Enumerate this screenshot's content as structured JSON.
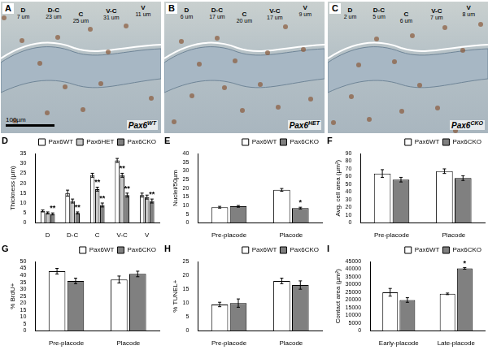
{
  "image_panels": [
    {
      "panel": "A",
      "genotype": {
        "base": "Pax6",
        "sup": "WT"
      },
      "scale_bar": "100µm",
      "regions": [
        {
          "label": "D",
          "measure": "7 um"
        },
        {
          "label": "D-C",
          "measure": "23 um"
        },
        {
          "label": "C",
          "measure": "25 um"
        },
        {
          "label": "V-C",
          "measure": "31 um"
        },
        {
          "label": "V",
          "measure": "11 um"
        }
      ]
    },
    {
      "panel": "B",
      "genotype": {
        "base": "Pax6",
        "sup": "HET"
      },
      "regions": [
        {
          "label": "D",
          "measure": "6 um"
        },
        {
          "label": "D-C",
          "measure": "17 um"
        },
        {
          "label": "C",
          "measure": "20 um"
        },
        {
          "label": "V-C",
          "measure": "17 um"
        },
        {
          "label": "V",
          "measure": "9 um"
        }
      ]
    },
    {
      "panel": "C",
      "genotype": {
        "base": "Pax6",
        "sup": "CKO"
      },
      "regions": [
        {
          "label": "D",
          "measure": "2 um"
        },
        {
          "label": "D-C",
          "measure": "5 um"
        },
        {
          "label": "C",
          "measure": "6 um"
        },
        {
          "label": "V-C",
          "measure": "7 um"
        },
        {
          "label": "V",
          "measure": "8 um"
        }
      ]
    }
  ],
  "chart_data": [
    {
      "panel": "D",
      "type": "bar",
      "ylabel": "Thickness (µm)",
      "categories": [
        "D",
        "D-C",
        "C",
        "V-C",
        "V"
      ],
      "ylim": [
        0,
        35
      ],
      "yticks": [
        0,
        5,
        10,
        15,
        20,
        25,
        30,
        35
      ],
      "grid": false,
      "legend": "upper right",
      "series": [
        {
          "name": "Pax6WT",
          "color": "#ffffff",
          "values": [
            6,
            15,
            24,
            31.5,
            14
          ],
          "errors": [
            0.5,
            1.5,
            1,
            1,
            1
          ],
          "significance": [
            null,
            null,
            null,
            null,
            null
          ]
        },
        {
          "name": "Pax6HET",
          "color": "#c8c8c8",
          "values": [
            5,
            11,
            17,
            24,
            13
          ],
          "errors": [
            0.5,
            1,
            1,
            1,
            1
          ],
          "significance": [
            null,
            null,
            "**",
            "**",
            null
          ]
        },
        {
          "name": "Pax6CKO",
          "color": "#808080",
          "values": [
            4.5,
            5,
            9,
            14,
            11
          ],
          "errors": [
            0.5,
            0.5,
            1,
            1,
            1
          ],
          "significance": [
            "**",
            "**",
            "**",
            "**",
            "**"
          ]
        }
      ]
    },
    {
      "panel": "E",
      "type": "bar",
      "ylabel": "Nuclei/50µm",
      "categories": [
        "Pre-placode",
        "Placode"
      ],
      "ylim": [
        0,
        40
      ],
      "yticks": [
        0,
        5,
        10,
        15,
        20,
        25,
        30,
        35,
        40
      ],
      "grid": false,
      "legend": "upper right",
      "series": [
        {
          "name": "Pax6WT",
          "color": "#ffffff",
          "values": [
            9,
            19
          ],
          "errors": [
            0.5,
            0.8
          ],
          "significance": [
            null,
            null
          ]
        },
        {
          "name": "Pax6CKO",
          "color": "#808080",
          "values": [
            9.5,
            8.5
          ],
          "errors": [
            0.5,
            0.5
          ],
          "significance": [
            null,
            "*"
          ]
        }
      ]
    },
    {
      "panel": "F",
      "type": "bar",
      "ylabel": "Avg. cell area (µm²)",
      "categories": [
        "Pre-placode",
        "Placode"
      ],
      "ylim": [
        0,
        90
      ],
      "yticks": [
        0,
        10,
        20,
        30,
        40,
        50,
        60,
        70,
        80,
        90
      ],
      "grid": false,
      "legend": "upper right",
      "series": [
        {
          "name": "Pax6WT",
          "color": "#ffffff",
          "values": [
            64,
            67
          ],
          "errors": [
            5,
            3
          ],
          "significance": [
            null,
            null
          ]
        },
        {
          "name": "Pax6CKO",
          "color": "#808080",
          "values": [
            56,
            58
          ],
          "errors": [
            3,
            3
          ],
          "significance": [
            null,
            null
          ]
        }
      ]
    },
    {
      "panel": "G",
      "type": "bar",
      "ylabel": "% BrdU+",
      "categories": [
        "Pre-placode",
        "Placode"
      ],
      "ylim": [
        0,
        50
      ],
      "yticks": [
        0,
        5,
        10,
        15,
        20,
        25,
        30,
        35,
        40,
        45,
        50
      ],
      "grid": false,
      "legend": "upper right",
      "series": [
        {
          "name": "Pax6WT",
          "color": "#ffffff",
          "values": [
            43,
            37
          ],
          "errors": [
            2,
            2.5
          ],
          "significance": [
            null,
            null
          ]
        },
        {
          "name": "Pax6CKO",
          "color": "#808080",
          "values": [
            36,
            41
          ],
          "errors": [
            2,
            2
          ],
          "significance": [
            null,
            null
          ]
        }
      ]
    },
    {
      "panel": "H",
      "type": "bar",
      "ylabel": "% TUNEL+",
      "categories": [
        "Pre-placode",
        "Placode"
      ],
      "ylim": [
        0,
        25
      ],
      "yticks": [
        0,
        5,
        10,
        15,
        20,
        25
      ],
      "grid": false,
      "legend": "upper right",
      "series": [
        {
          "name": "Pax6WT",
          "color": "#ffffff",
          "values": [
            9.5,
            18
          ],
          "errors": [
            0.8,
            1
          ],
          "significance": [
            null,
            null
          ]
        },
        {
          "name": "Pax6CKO",
          "color": "#808080",
          "values": [
            10,
            16.5
          ],
          "errors": [
            1.5,
            1.5
          ],
          "significance": [
            null,
            null
          ]
        }
      ]
    },
    {
      "panel": "I",
      "type": "bar",
      "ylabel": "Contact area (µm²)",
      "categories": [
        "Early-placode",
        "Late-placode"
      ],
      "ylim": [
        0,
        45000
      ],
      "yticks": [
        0,
        5000,
        10000,
        15000,
        20000,
        25000,
        30000,
        35000,
        40000,
        45000
      ],
      "grid": false,
      "legend": "upper right",
      "series": [
        {
          "name": "Pax6WT",
          "color": "#ffffff",
          "values": [
            25000,
            24000
          ],
          "errors": [
            2500,
            500
          ],
          "significance": [
            null,
            null
          ]
        },
        {
          "name": "Pax6CKO",
          "color": "#808080",
          "values": [
            20000,
            40500
          ],
          "errors": [
            1500,
            500
          ],
          "significance": [
            null,
            "*"
          ]
        }
      ]
    }
  ]
}
